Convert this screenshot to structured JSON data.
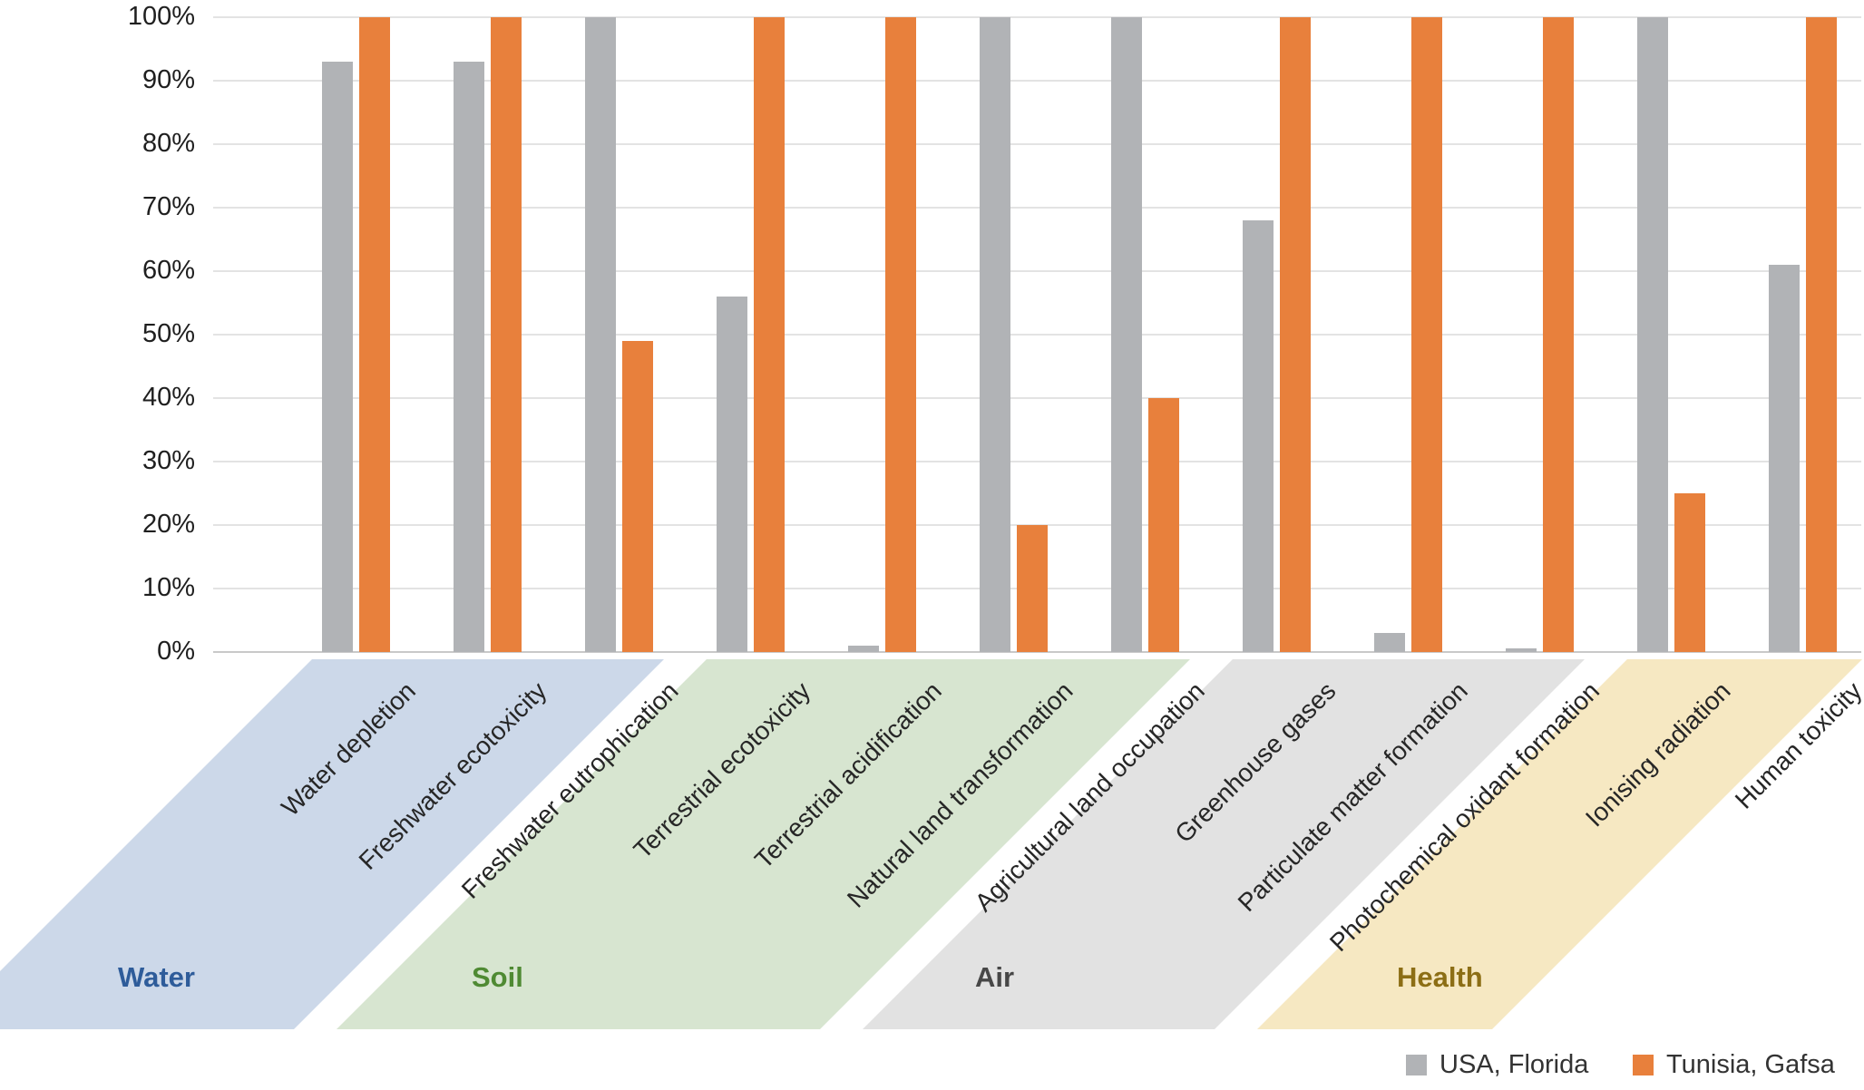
{
  "chart_data": {
    "type": "bar",
    "title": "",
    "xlabel": "",
    "ylabel": "",
    "ylim": [
      0,
      100
    ],
    "grid": true,
    "legend_position": "bottom-right",
    "categories": [
      "Water depletion",
      "Freshwater ecotoxicity",
      "Freshwater eutrophication",
      "Terrestrial ecotoxicity",
      "Terrestrial acidification",
      "Natural land transformation",
      "Agricultural land occupation",
      "Greenhouse gases",
      "Particulate matter formation",
      "Photochemical oxidant formation",
      "Ionising radiation",
      "Human toxicity"
    ],
    "series": [
      {
        "name": "USA, Florida",
        "color": "#b1b3b6",
        "values": [
          93,
          93,
          100,
          56,
          1,
          100,
          100,
          68,
          3,
          0.5,
          100,
          61
        ]
      },
      {
        "name": "Tunisia, Gafsa",
        "color": "#e8803c",
        "values": [
          100,
          100,
          49,
          100,
          100,
          20,
          40,
          100,
          100,
          100,
          25,
          100
        ]
      }
    ],
    "y_tick_labels": [
      "0%",
      "10%",
      "20%",
      "30%",
      "40%",
      "50%",
      "60%",
      "70%",
      "80%",
      "90%",
      "100%"
    ],
    "groups": [
      {
        "label": "Water",
        "start": 0,
        "end": 2,
        "band_color": "#ccd8e9",
        "label_color": "#2e5c9a"
      },
      {
        "label": "Soil",
        "start": 3,
        "end": 6,
        "band_color": "#d7e5d0",
        "label_color": "#4f8a33"
      },
      {
        "label": "Air",
        "start": 7,
        "end": 9,
        "band_color": "#e2e2e2",
        "label_color": "#474747"
      },
      {
        "label": "Health",
        "start": 10,
        "end": 11,
        "band_color": "#f6e8c2",
        "label_color": "#8c6e15"
      }
    ]
  },
  "legend": {
    "items": [
      {
        "label": "USA, Florida",
        "color": "#b1b3b6"
      },
      {
        "label": "Tunisia, Gafsa",
        "color": "#e8803c"
      }
    ]
  },
  "colors": {
    "background": "#ffffff",
    "gridline": "#e3e3e3",
    "baseline": "#c9c9c9",
    "axis_text": "#1f1f1f",
    "legend_text": "#333333"
  }
}
